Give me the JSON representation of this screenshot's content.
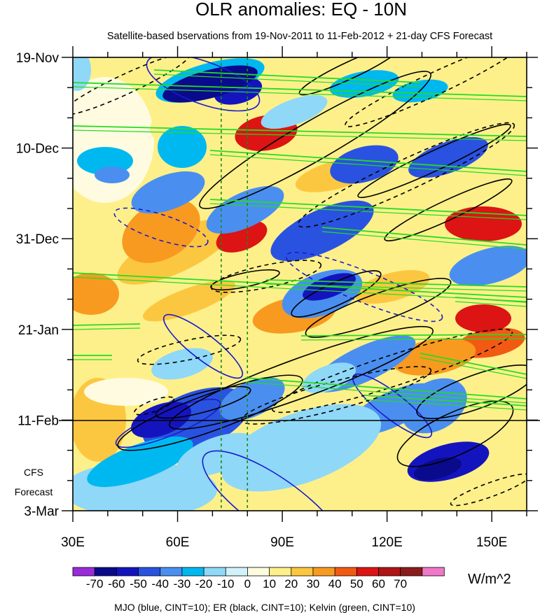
{
  "chart_data": {
    "type": "heatmap",
    "title": "OLR anomalies: EQ - 10N",
    "subtitle": "Satellite-based bservations from 19-Nov-2011 to 11-Feb-2012 + 21-day CFS Forecast",
    "x_ticks": [
      {
        "value": 30,
        "label": "30E"
      },
      {
        "value": 60,
        "label": "60E"
      },
      {
        "value": 90,
        "label": "90E"
      },
      {
        "value": 120,
        "label": "120E"
      },
      {
        "value": 150,
        "label": "150E"
      }
    ],
    "xlim": [
      30,
      160
    ],
    "y_ticks": [
      {
        "value": 0,
        "label": "19-Nov"
      },
      {
        "value": 21,
        "label": "10-Dec"
      },
      {
        "value": 42,
        "label": "31-Dec"
      },
      {
        "value": 63,
        "label": "21-Jan"
      },
      {
        "value": 84,
        "label": "11-Feb"
      },
      {
        "value": 105,
        "label": "3-Mar"
      }
    ],
    "ylim_days": [
      0,
      105
    ],
    "forecast_start_day": 84,
    "forecast_label_line1": "CFS",
    "forecast_label_line2": "Forecast",
    "reference_longitudes": [
      72.5,
      80
    ],
    "colorbar": {
      "labels": [
        "-70",
        "-60",
        "-50",
        "-40",
        "-30",
        "-20",
        "-10",
        "0",
        "10",
        "20",
        "30",
        "40",
        "50",
        "60",
        "70"
      ],
      "colors": [
        "#9a2bd9",
        "#0a0a8c",
        "#1414bf",
        "#2a52e0",
        "#4a8ff0",
        "#00b8f0",
        "#8fd8f8",
        "#d2f2fb",
        "#fffbe0",
        "#fdf08a",
        "#fcc740",
        "#f89a20",
        "#f25a14",
        "#dc1414",
        "#b01414",
        "#8c1c1c",
        "#f078c8"
      ],
      "units": "W/m^2"
    },
    "contour_legend": "MJO (blue, CINT=10); ER (black, CINT=10); Kelvin (green, CINT=10)",
    "mjo_color": "#1a1ad0",
    "er_color": "#000000",
    "kelvin_color": "#22dd22",
    "ref_line_color": "#1a8a1a"
  }
}
